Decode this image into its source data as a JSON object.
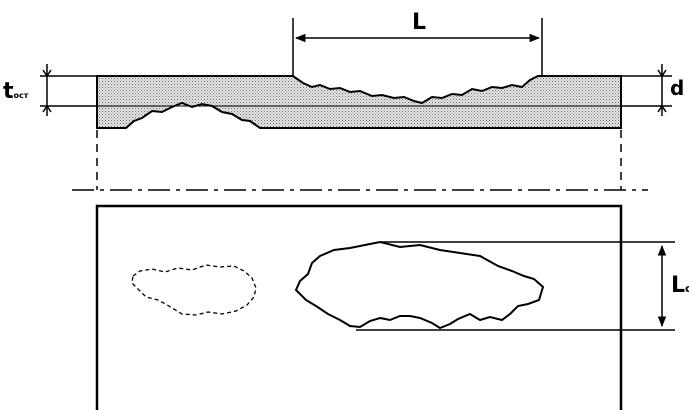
{
  "labels": {
    "length": "L",
    "residual_thickness_main": "t",
    "residual_thickness_sub": "ост",
    "depth": "d",
    "lateral_extent": "L",
    "lateral_extent_sub": "c"
  },
  "colors": {
    "line": "#000000",
    "hatch": "#b4b4b4",
    "background": "#ffffff"
  }
}
